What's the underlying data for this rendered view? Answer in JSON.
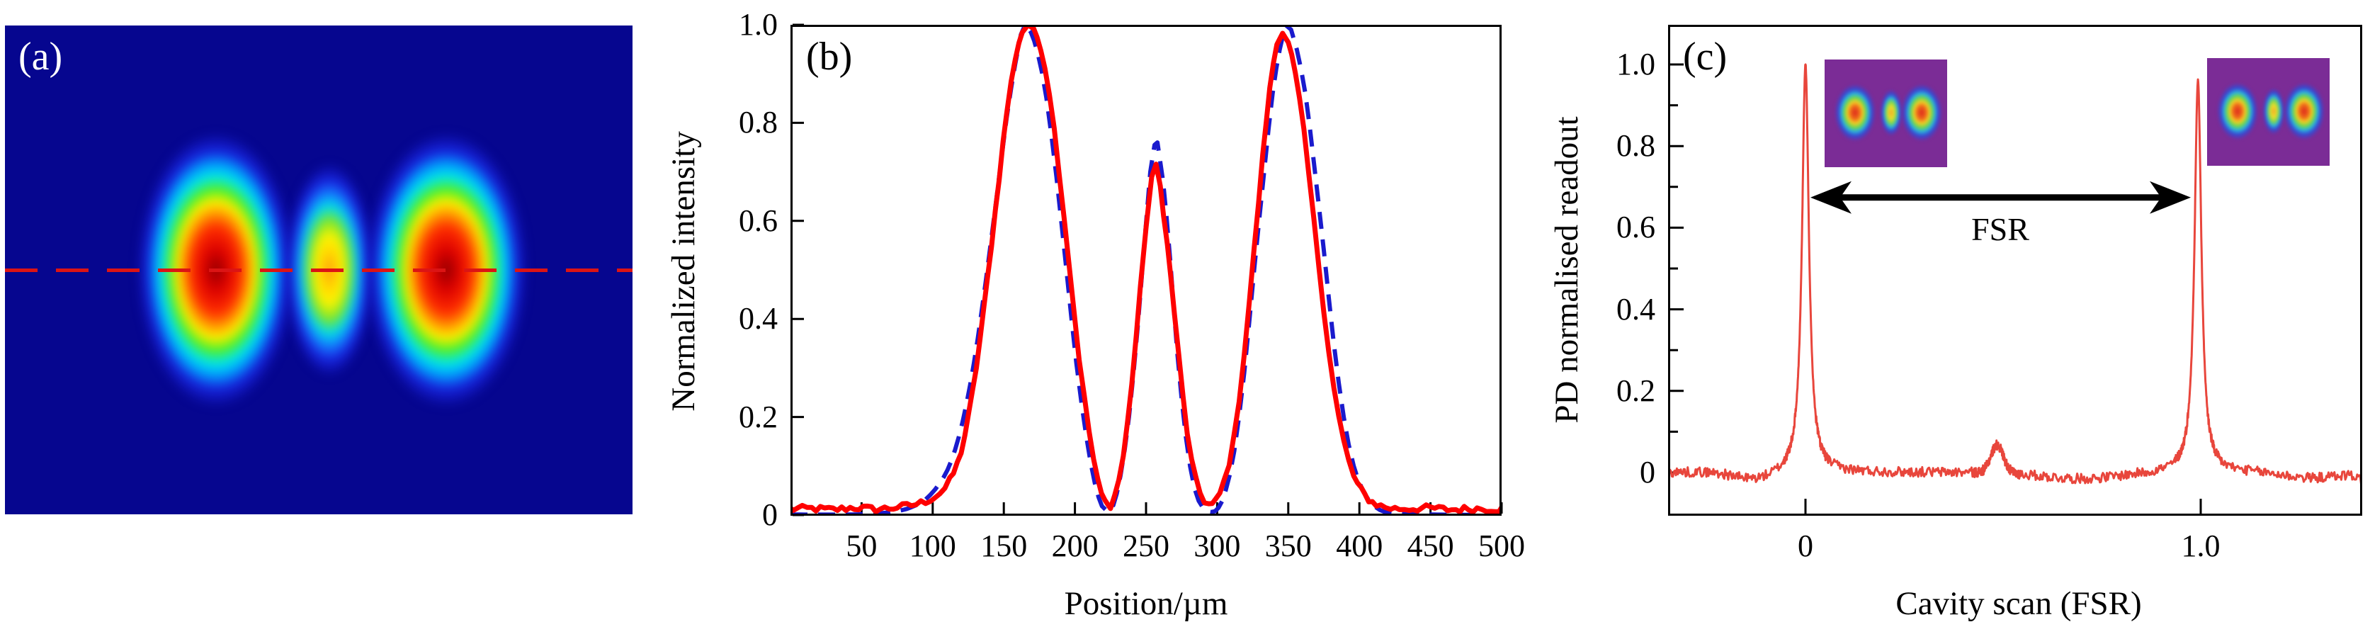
{
  "figure": {
    "panels": {
      "a": {
        "label": "(a)"
      },
      "b": {
        "label": "(b)"
      },
      "c": {
        "label": "(c)"
      }
    }
  },
  "colors": {
    "panel_a_background": "#06068f",
    "cut_line_red": "#dc1414",
    "measured_red": "#ff0000",
    "theory_blue": "#1a1acd",
    "cavity_trace_red": "#e8463c",
    "axis_black": "#000000",
    "inset_background": "#7b2c96"
  },
  "chart_data": [
    {
      "panel": "a",
      "type": "heatmap",
      "description": "Camera image of a triple-lobe (HG-like) transverse beam mode, jet colormap on dark blue background, with a horizontal red dashed cross-section line through the lobe centres",
      "colormap": "jet",
      "lobes": [
        {
          "x_frac": 0.336,
          "y_frac": 0.5,
          "rel_intensity": 1.0
        },
        {
          "x_frac": 0.517,
          "y_frac": 0.5,
          "rel_intensity": 0.7
        },
        {
          "x_frac": 0.703,
          "y_frac": 0.5,
          "rel_intensity": 1.0
        }
      ],
      "cut_line": {
        "style": "dashed",
        "orientation": "horizontal",
        "y_frac": 0.5
      }
    },
    {
      "panel": "b",
      "type": "line",
      "xlabel": "Position/µm",
      "ylabel": "Normalized intensity",
      "xlim": [
        0,
        500
      ],
      "ylim": [
        0,
        1.0
      ],
      "grid": false,
      "xticks": [
        {
          "value": 50,
          "label": "50"
        },
        {
          "value": 100,
          "label": "100"
        },
        {
          "value": 150,
          "label": "150"
        },
        {
          "value": 200,
          "label": "200"
        },
        {
          "value": 250,
          "label": "250"
        },
        {
          "value": 300,
          "label": "300"
        },
        {
          "value": 350,
          "label": "350"
        },
        {
          "value": 400,
          "label": "400"
        },
        {
          "value": 450,
          "label": "450"
        },
        {
          "value": 500,
          "label": "500"
        }
      ],
      "yticks": [
        {
          "value": 0,
          "label": "0"
        },
        {
          "value": 0.2,
          "label": "0.2"
        },
        {
          "value": 0.4,
          "label": "0.4"
        },
        {
          "value": 0.6,
          "label": "0.6"
        },
        {
          "value": 0.8,
          "label": "0.8"
        },
        {
          "value": 1.0,
          "label": "1.0"
        }
      ],
      "series": [
        {
          "name": "theory-fit",
          "color": "#1a1acd",
          "style": "dashed",
          "points": [
            [
              0,
              0.001
            ],
            [
              40,
              0.001
            ],
            [
              60,
              0.003
            ],
            [
              75,
              0.008
            ],
            [
              85,
              0.016
            ],
            [
              95,
              0.032
            ],
            [
              105,
              0.065
            ],
            [
              113,
              0.11
            ],
            [
              121,
              0.19
            ],
            [
              129,
              0.31
            ],
            [
              137,
              0.47
            ],
            [
              145,
              0.65
            ],
            [
              152,
              0.81
            ],
            [
              158,
              0.92
            ],
            [
              162,
              0.98
            ],
            [
              165,
              1.0
            ],
            [
              169,
              0.985
            ],
            [
              174,
              0.94
            ],
            [
              180,
              0.85
            ],
            [
              187,
              0.69
            ],
            [
              194,
              0.5
            ],
            [
              201,
              0.31
            ],
            [
              208,
              0.16
            ],
            [
              214,
              0.065
            ],
            [
              219,
              0.018
            ],
            [
              223,
              0.007
            ],
            [
              227,
              0.02
            ],
            [
              232,
              0.08
            ],
            [
              238,
              0.2
            ],
            [
              244,
              0.38
            ],
            [
              249,
              0.56
            ],
            [
              253,
              0.7
            ],
            [
              256,
              0.755
            ],
            [
              258,
              0.76
            ],
            [
              262,
              0.68
            ],
            [
              267,
              0.52
            ],
            [
              272,
              0.33
            ],
            [
              278,
              0.16
            ],
            [
              284,
              0.055
            ],
            [
              290,
              0.015
            ],
            [
              296,
              0.006
            ],
            [
              301,
              0.015
            ],
            [
              306,
              0.05
            ],
            [
              312,
              0.13
            ],
            [
              319,
              0.29
            ],
            [
              326,
              0.5
            ],
            [
              333,
              0.7
            ],
            [
              339,
              0.86
            ],
            [
              344,
              0.95
            ],
            [
              348,
              1.0
            ],
            [
              352,
              0.99
            ],
            [
              356,
              0.95
            ],
            [
              362,
              0.86
            ],
            [
              368,
              0.72
            ],
            [
              375,
              0.54
            ],
            [
              382,
              0.35
            ],
            [
              389,
              0.2
            ],
            [
              396,
              0.1
            ],
            [
              404,
              0.042
            ],
            [
              412,
              0.015
            ],
            [
              420,
              0.005
            ],
            [
              432,
              0.002
            ],
            [
              450,
              0.001
            ],
            [
              500,
              0.0
            ]
          ]
        },
        {
          "name": "measured-profile",
          "color": "#ff0000",
          "style": "solid",
          "noise_amplitude": 0.007,
          "points": [
            [
              0,
              0.012
            ],
            [
              15,
              0.013
            ],
            [
              30,
              0.011
            ],
            [
              45,
              0.015
            ],
            [
              60,
              0.012
            ],
            [
              75,
              0.016
            ],
            [
              85,
              0.02
            ],
            [
              95,
              0.028
            ],
            [
              105,
              0.045
            ],
            [
              112,
              0.07
            ],
            [
              120,
              0.13
            ],
            [
              128,
              0.25
            ],
            [
              136,
              0.42
            ],
            [
              144,
              0.62
            ],
            [
              152,
              0.82
            ],
            [
              158,
              0.93
            ],
            [
              163,
              0.985
            ],
            [
              167,
              1.0
            ],
            [
              171,
              0.99
            ],
            [
              176,
              0.95
            ],
            [
              182,
              0.86
            ],
            [
              189,
              0.7
            ],
            [
              196,
              0.51
            ],
            [
              203,
              0.32
            ],
            [
              210,
              0.17
            ],
            [
              216,
              0.07
            ],
            [
              221,
              0.028
            ],
            [
              225,
              0.02
            ],
            [
              228,
              0.04
            ],
            [
              234,
              0.12
            ],
            [
              240,
              0.27
            ],
            [
              246,
              0.46
            ],
            [
              250,
              0.59
            ],
            [
              254,
              0.69
            ],
            [
              257,
              0.71
            ],
            [
              260,
              0.67
            ],
            [
              265,
              0.55
            ],
            [
              270,
              0.41
            ],
            [
              276,
              0.24
            ],
            [
              282,
              0.11
            ],
            [
              288,
              0.045
            ],
            [
              294,
              0.022
            ],
            [
              299,
              0.028
            ],
            [
              305,
              0.07
            ],
            [
              312,
              0.16
            ],
            [
              319,
              0.33
            ],
            [
              326,
              0.54
            ],
            [
              332,
              0.73
            ],
            [
              337,
              0.87
            ],
            [
              342,
              0.96
            ],
            [
              346,
              0.985
            ],
            [
              350,
              0.965
            ],
            [
              355,
              0.9
            ],
            [
              361,
              0.78
            ],
            [
              368,
              0.6
            ],
            [
              375,
              0.42
            ],
            [
              382,
              0.26
            ],
            [
              389,
              0.15
            ],
            [
              396,
              0.08
            ],
            [
              404,
              0.04
            ],
            [
              412,
              0.022
            ],
            [
              422,
              0.014
            ],
            [
              435,
              0.013
            ],
            [
              450,
              0.014
            ],
            [
              465,
              0.011
            ],
            [
              480,
              0.013
            ],
            [
              500,
              0.012
            ]
          ]
        }
      ]
    },
    {
      "panel": "c",
      "type": "line",
      "xlabel": "Cavity scan (FSR)",
      "ylabel": "PD normalised readout",
      "xlim": [
        -0.348,
        1.409
      ],
      "ylim": [
        -0.105,
        1.1
      ],
      "grid": false,
      "xticks": [
        {
          "value": 0,
          "label": "0"
        },
        {
          "value": 1.0,
          "label": "1.0"
        }
      ],
      "yticks": [
        {
          "value": 0,
          "label": "0"
        },
        {
          "value": 0.2,
          "label": "0.2"
        },
        {
          "value": 0.4,
          "label": "0.4"
        },
        {
          "value": 0.6,
          "label": "0.6"
        },
        {
          "value": 0.8,
          "label": "0.8"
        },
        {
          "value": 1.0,
          "label": "1.0"
        }
      ],
      "yminorticks": [
        0.1,
        0.3,
        0.5,
        0.7,
        0.9
      ],
      "series": [
        {
          "name": "pd-signal",
          "color": "#e8463c",
          "style": "solid",
          "noise_amplitude": 0.012,
          "peaks": [
            {
              "center": 0.0,
              "height": 1.0,
              "width": 0.0105,
              "shape": "lorentzian"
            },
            {
              "center": 0.485,
              "height": 0.068,
              "width": 0.016,
              "shape": "gaussian"
            },
            {
              "center": 0.993,
              "height": 0.962,
              "width": 0.0105,
              "shape": "lorentzian"
            }
          ],
          "baseline_drift": [
            {
              "center": -0.13,
              "width": 0.05,
              "depth": -0.02
            },
            {
              "center": 0.7,
              "width": 0.1,
              "depth": -0.016
            },
            {
              "center": 1.28,
              "width": 0.07,
              "depth": -0.014
            },
            {
              "center": 1.44,
              "width": 0.025,
              "depth": -0.04
            }
          ]
        }
      ],
      "annotations": {
        "fsr_arrow": {
          "from": 0.0,
          "to": 1.0,
          "y": 0.674,
          "label": "FSR",
          "style": "double-headed"
        }
      },
      "insets": [
        {
          "name": "resonant-mode-image-left",
          "description": "triple-lobe mode image, rainbow colormap on purple background"
        },
        {
          "name": "resonant-mode-image-right",
          "description": "triple-lobe mode image, rainbow colormap on purple background"
        }
      ]
    }
  ]
}
